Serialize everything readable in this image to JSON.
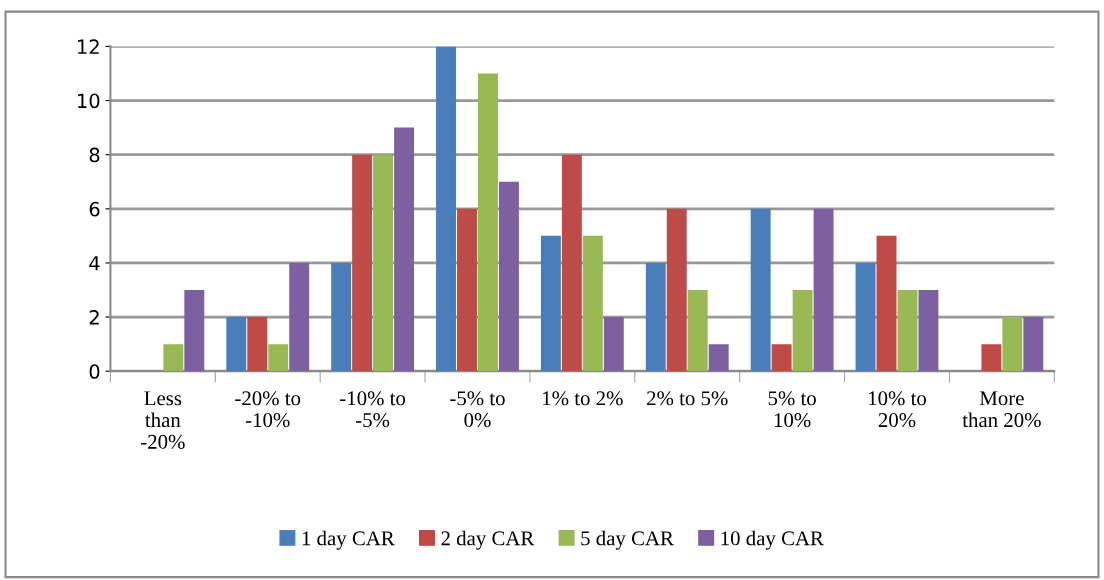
{
  "chart_data": {
    "type": "bar",
    "categories": [
      "Less than -20%",
      "-20% to -10%",
      "-10% to -5%",
      "-5% to 0%",
      "1% to 2%",
      "2% to 5%",
      "5% to 10%",
      "10% to 20%",
      "More than 20%"
    ],
    "series": [
      {
        "name": "1 day CAR",
        "color": "#4a7ebb",
        "values": [
          0,
          2,
          4,
          12,
          5,
          4,
          6,
          4,
          0
        ]
      },
      {
        "name": "2 day CAR",
        "color": "#be4b48",
        "values": [
          0,
          2,
          8,
          6,
          8,
          6,
          1,
          5,
          1
        ]
      },
      {
        "name": "5 day CAR",
        "color": "#98b954",
        "values": [
          1,
          1,
          8,
          11,
          5,
          3,
          3,
          3,
          2
        ]
      },
      {
        "name": "10 day CAR",
        "color": "#7d60a0",
        "values": [
          3,
          4,
          9,
          7,
          2,
          1,
          6,
          3,
          2
        ]
      }
    ],
    "ylim": [
      0,
      12
    ],
    "yticks": [
      0,
      2,
      4,
      6,
      8,
      10,
      12
    ],
    "grid": "y",
    "legend": "bottom"
  }
}
